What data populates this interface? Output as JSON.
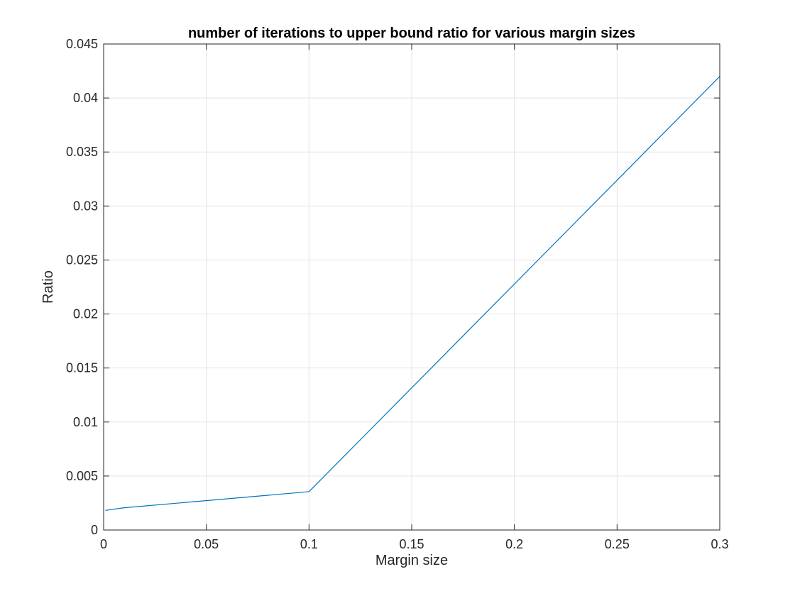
{
  "chart_data": {
    "type": "line",
    "title": "number of iterations to upper bound ratio for various margin sizes",
    "xlabel": "Margin size",
    "ylabel": "Ratio",
    "xlim": [
      0,
      0.3
    ],
    "ylim": [
      0,
      0.045
    ],
    "xticks": [
      0,
      0.05,
      0.1,
      0.15,
      0.2,
      0.25,
      0.3
    ],
    "xtick_labels": [
      "0",
      "0.05",
      "0.1",
      "0.15",
      "0.2",
      "0.25",
      "0.3"
    ],
    "yticks": [
      0,
      0.005,
      0.01,
      0.015,
      0.02,
      0.025,
      0.03,
      0.035,
      0.04,
      0.045
    ],
    "ytick_labels": [
      "0",
      "0.005",
      "0.01",
      "0.015",
      "0.02",
      "0.025",
      "0.03",
      "0.035",
      "0.04",
      "0.045"
    ],
    "grid": true,
    "series": [
      {
        "color": "#0072bd",
        "x": [
          0.001,
          0.01,
          0.1,
          0.3
        ],
        "y": [
          0.00182,
          0.00206,
          0.00355,
          0.042
        ]
      }
    ]
  }
}
